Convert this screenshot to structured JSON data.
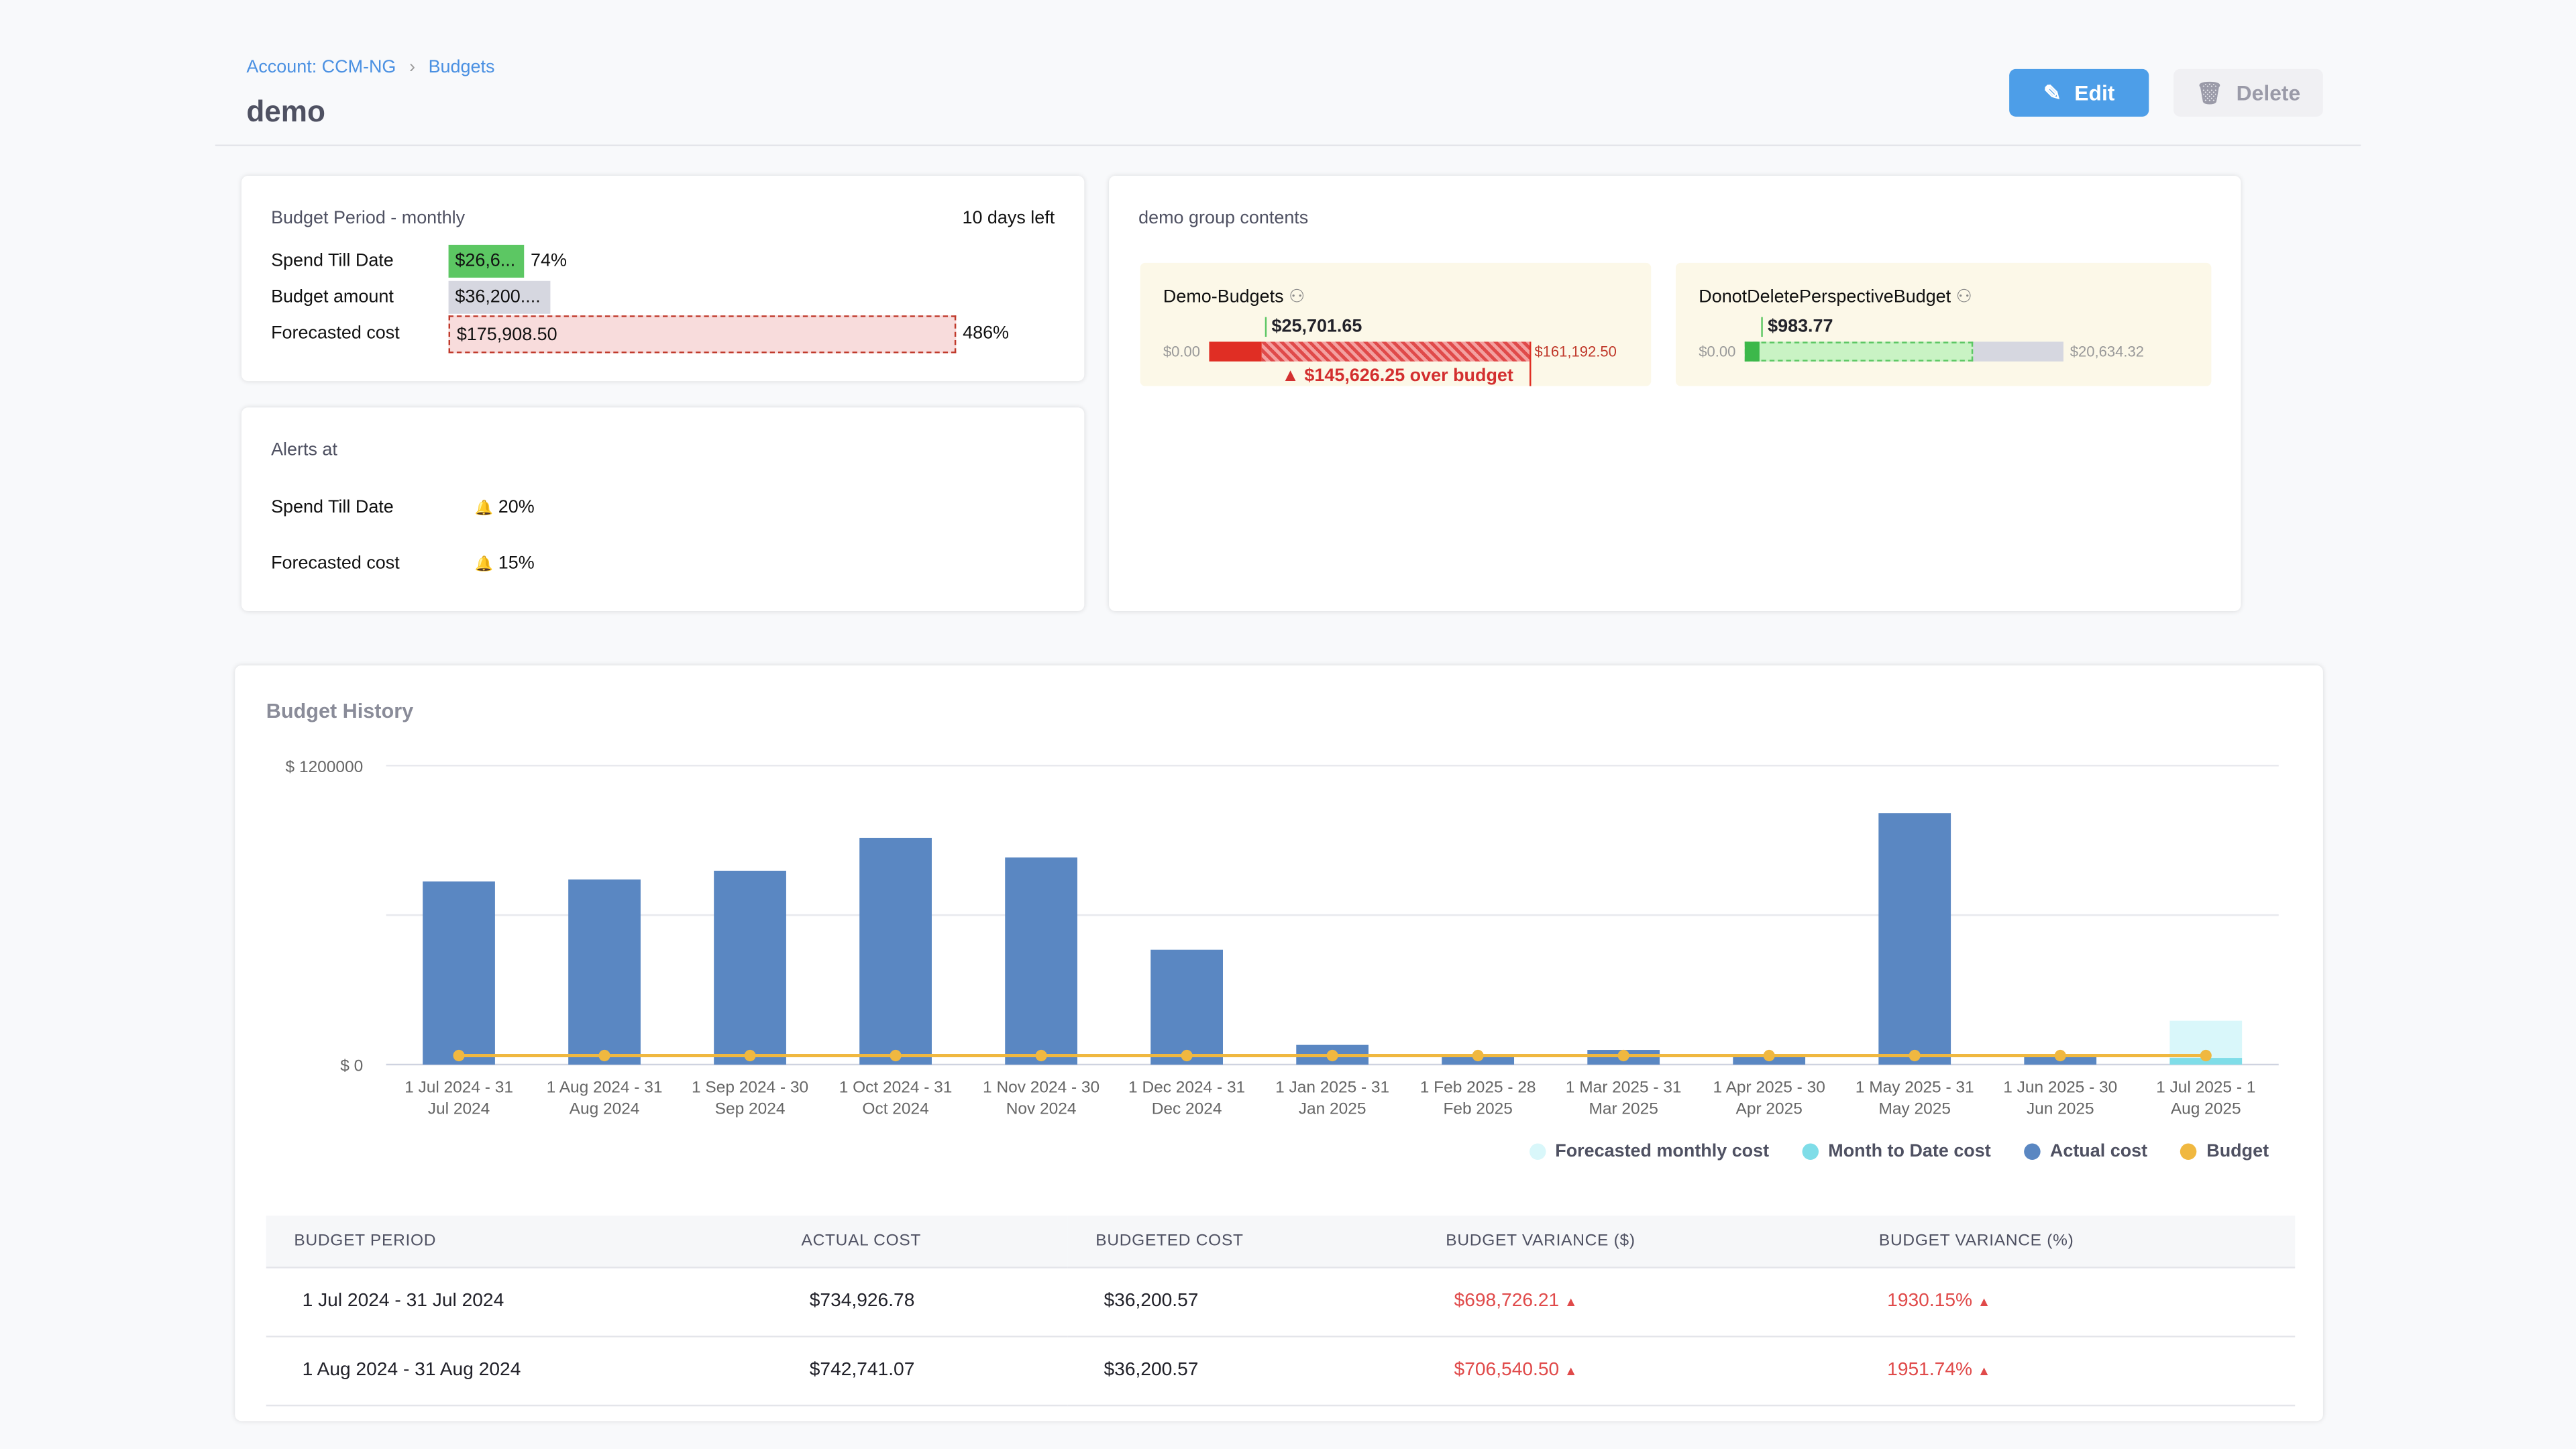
{
  "breadcrumb": [
    "Account: CCM-NG",
    "Budgets"
  ],
  "page_title": "demo",
  "actions": {
    "edit": "Edit",
    "delete": "Delete"
  },
  "budget_period": {
    "title": "Budget Period - monthly",
    "days_left": "10 days left",
    "rows": [
      {
        "label": "Spend Till Date",
        "value": "$26,6...",
        "pct": "74%",
        "color": "#5cc763"
      },
      {
        "label": "Budget amount",
        "value": "$36,200....",
        "color": "#d6d7e0"
      },
      {
        "label": "Forecasted cost",
        "value": "$175,908.50",
        "pct": "486%",
        "color": "#f8dcdc"
      }
    ]
  },
  "alerts": {
    "title": "Alerts at",
    "rows": [
      {
        "label": "Spend Till Date",
        "value": "20%"
      },
      {
        "label": "Forecasted cost",
        "value": "15%"
      }
    ]
  },
  "group": {
    "title": "demo group contents",
    "items": [
      {
        "name": "Demo-Budgets",
        "spend": "$25,701.65",
        "min": "$0.00",
        "max": "$161,192.50",
        "over": "$145,626.25 over budget"
      },
      {
        "name": "DonotDeletePerspectiveBudget",
        "spend": "$983.77",
        "min": "$0.00",
        "max": "$20,634.32"
      }
    ]
  },
  "history": {
    "title": "Budget History"
  },
  "chart_data": {
    "type": "bar",
    "ylim": [
      0,
      1200000
    ],
    "yticks": [
      "$ 0",
      "$ 1200000"
    ],
    "grid": true,
    "legend_placement": "bottom-right",
    "categories": [
      [
        "1 Jul 2024 - 31",
        "Jul 2024"
      ],
      [
        "1 Aug 2024 - 31",
        "Aug 2024"
      ],
      [
        "1 Sep 2024 - 30",
        "Sep 2024"
      ],
      [
        "1 Oct 2024 - 31",
        "Oct 2024"
      ],
      [
        "1 Nov 2024 - 30",
        "Nov 2024"
      ],
      [
        "1 Dec 2024 - 31",
        "Dec 2024"
      ],
      [
        "1 Jan 2025 - 31",
        "Jan 2025"
      ],
      [
        "1 Feb 2025 - 28",
        "Feb 2025"
      ],
      [
        "1 Mar 2025 - 31",
        "Mar 2025"
      ],
      [
        "1 Apr 2025 - 30",
        "Apr 2025"
      ],
      [
        "1 May 2025 - 31",
        "May 2025"
      ],
      [
        "1 Jun 2025 - 30",
        "Jun 2025"
      ],
      [
        "1 Jul 2025 - 1",
        "Aug 2025"
      ]
    ],
    "series": [
      {
        "name": "Forecasted monthly cost",
        "color": "#d9f7fa",
        "values": [
          null,
          null,
          null,
          null,
          null,
          null,
          null,
          null,
          null,
          null,
          null,
          null,
          175908.5
        ]
      },
      {
        "name": "Month to Date cost",
        "color": "#7fdde8",
        "values": [
          null,
          null,
          null,
          null,
          null,
          null,
          null,
          null,
          null,
          null,
          null,
          null,
          26600
        ]
      },
      {
        "name": "Actual cost",
        "color": "#5a87c2",
        "values": [
          734926.78,
          742741.07,
          778000,
          910000,
          831000,
          461000,
          79000,
          35000,
          59000,
          33000,
          1009000,
          33000,
          null
        ]
      },
      {
        "name": "Budget",
        "color": "#f0b840",
        "values": [
          36200.57,
          36200.57,
          36200.57,
          36200.57,
          36200.57,
          36200.57,
          36200.57,
          36200.57,
          36200.57,
          36200.57,
          36200.57,
          36200.57,
          36200.57
        ]
      }
    ]
  },
  "table": {
    "headers": [
      "BUDGET PERIOD",
      "ACTUAL COST",
      "BUDGETED COST",
      "BUDGET VARIANCE ($)",
      "BUDGET VARIANCE (%)"
    ],
    "rows": [
      [
        "1 Jul 2024 - 31 Jul 2024",
        "$734,926.78",
        "$36,200.57",
        "$698,726.21",
        "1930.15%"
      ],
      [
        "1 Aug 2024 - 31 Aug 2024",
        "$742,741.07",
        "$36,200.57",
        "$706,540.50",
        "1951.74%"
      ]
    ]
  }
}
